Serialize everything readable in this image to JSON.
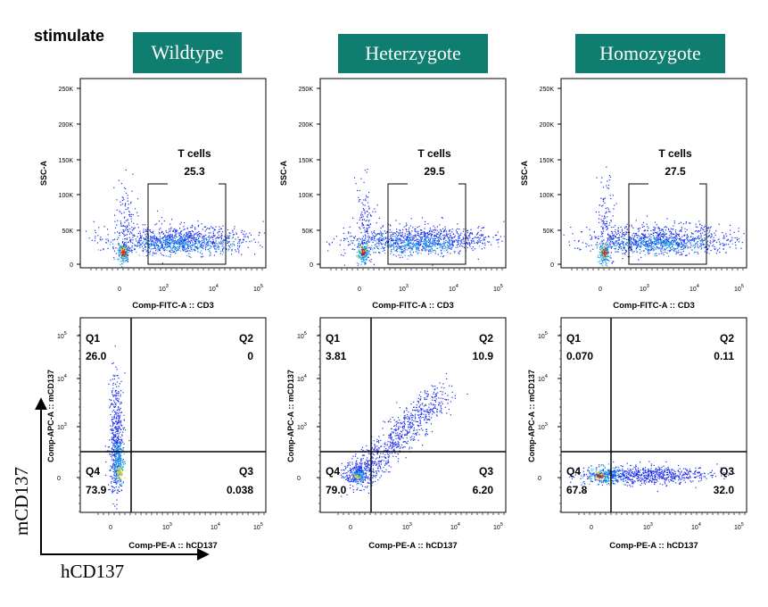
{
  "header": {
    "title": "stimulate"
  },
  "genotypes": [
    "Wildtype",
    "Heterzygote",
    "Homozygote"
  ],
  "axes_legend": {
    "y_label": "mCD137",
    "x_label": "hCD137"
  },
  "colors": {
    "header_box": "#0f7d6f",
    "box_text": "#ffffff"
  },
  "chart_data": [
    {
      "type": "scatter",
      "row": "top",
      "gate_name": "T cells",
      "xlabel": "Comp-FITC-A :: CD3",
      "ylabel": "SSC-A",
      "yticks": [
        "250K",
        "200K",
        "150K",
        "100K",
        "50K",
        "0"
      ],
      "xticks": [
        "0",
        "10",
        "10",
        "10"
      ],
      "xtick_exponents": [
        "",
        "3",
        "4",
        "5"
      ],
      "panels": [
        {
          "genotype": "Wildtype",
          "gate_value": "25.3"
        },
        {
          "genotype": "Heterzygote",
          "gate_value": "29.5"
        },
        {
          "genotype": "Homozygote",
          "gate_value": "27.5"
        }
      ]
    },
    {
      "type": "scatter",
      "row": "bottom",
      "xlabel": "Comp-PE-A :: hCD137",
      "ylabel": "Comp-APC-A :: mCD137",
      "yticks": [
        "10",
        "10",
        "10",
        "0"
      ],
      "ytick_exponents": [
        "5",
        "4",
        "3",
        ""
      ],
      "xticks": [
        "0",
        "10",
        "10",
        "10"
      ],
      "xtick_exponents": [
        "",
        "3",
        "4",
        "5"
      ],
      "quadrant_names": [
        "Q1",
        "Q2",
        "Q3",
        "Q4"
      ],
      "panels": [
        {
          "genotype": "Wildtype",
          "Q1": "26.0",
          "Q2": "0",
          "Q3": "0.038",
          "Q4": "73.9"
        },
        {
          "genotype": "Heterzygote",
          "Q1": "3.81",
          "Q2": "10.9",
          "Q3": "6.20",
          "Q4": "79.0"
        },
        {
          "genotype": "Homozygote",
          "Q1": "0.070",
          "Q2": "0.11",
          "Q3": "32.0",
          "Q4": "67.8"
        }
      ]
    }
  ]
}
